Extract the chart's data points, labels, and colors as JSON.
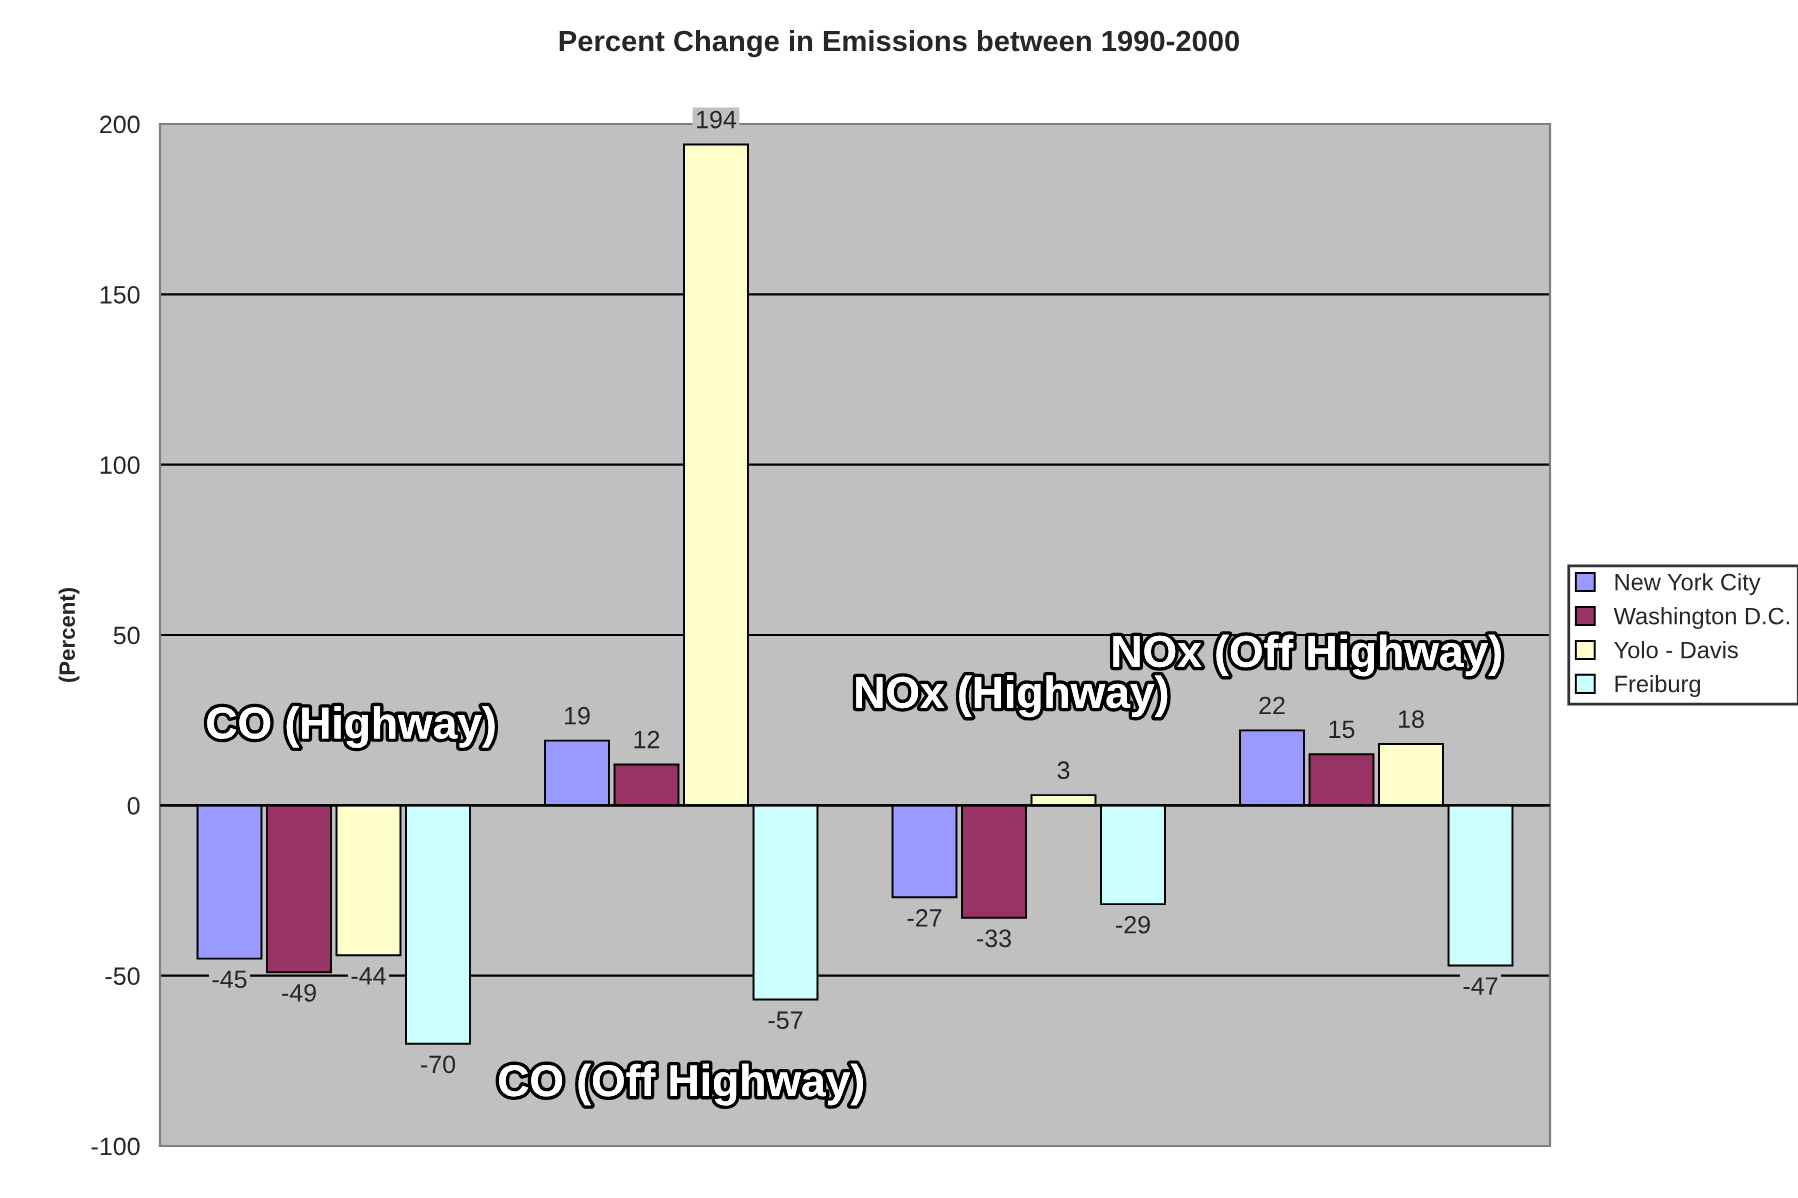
{
  "chart_data": {
    "type": "bar",
    "title": "Percent Change in Emissions between 1990-2000",
    "ylabel": "(Percent)",
    "categories": [
      "CO (Highway)",
      "CO (Off Highway)",
      "NOx (Highway)",
      "NOx (Off Highway)"
    ],
    "series": [
      {
        "name": "New York City",
        "color": "#9999ff",
        "values": [
          -45,
          19,
          -27,
          22
        ]
      },
      {
        "name": "Washington D.C.",
        "color": "#993366",
        "values": [
          -49,
          12,
          -33,
          15
        ]
      },
      {
        "name": "Yolo - Davis",
        "color": "#ffffcc",
        "values": [
          -44,
          194,
          3,
          18
        ]
      },
      {
        "name": "Freiburg",
        "color": "#ccffff",
        "values": [
          -70,
          -57,
          -29,
          -47
        ]
      }
    ],
    "ylim": [
      -100,
      200
    ],
    "yticks": [
      -100,
      -50,
      0,
      50,
      100,
      150,
      200
    ],
    "grid": "y",
    "legend": "right",
    "data_labels": true
  }
}
